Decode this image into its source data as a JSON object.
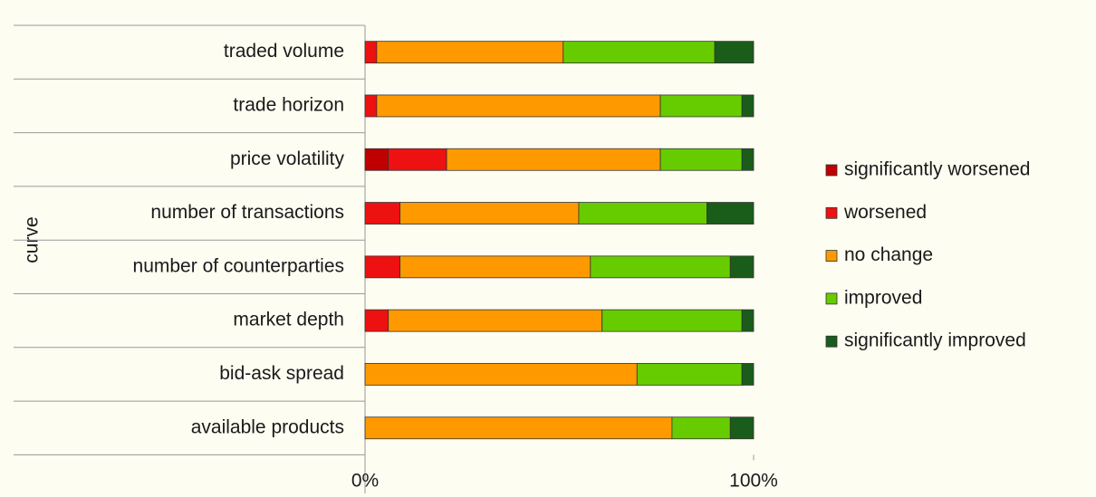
{
  "chart_data": {
    "type": "stacked-bar-horizontal",
    "ylabel": "curve",
    "categories": [
      "traded volume",
      "trade horizon",
      "price volatility",
      "number of transactions",
      "number of counterparties",
      "market depth",
      "bid-ask spread",
      "available products"
    ],
    "series": [
      {
        "name": "significantly worsened",
        "color": "#c00000",
        "values": [
          0,
          0,
          6,
          0,
          0,
          0,
          0,
          0
        ]
      },
      {
        "name": "worsened",
        "color": "#ee1111",
        "values": [
          3,
          3,
          15,
          9,
          9,
          6,
          0,
          0
        ]
      },
      {
        "name": "no change",
        "color": "#ff9900",
        "values": [
          48,
          73,
          55,
          46,
          49,
          55,
          70,
          79
        ]
      },
      {
        "name": "improved",
        "color": "#66cc00",
        "values": [
          39,
          21,
          21,
          33,
          36,
          36,
          27,
          15
        ]
      },
      {
        "name": "significantly improved",
        "color": "#1a5c1a",
        "values": [
          10,
          3,
          3,
          12,
          6,
          3,
          3,
          6
        ]
      }
    ],
    "xlim": [
      0,
      100
    ],
    "xticks": [
      {
        "value": 0,
        "label": "0%"
      },
      {
        "value": 100,
        "label": "100%"
      }
    ],
    "legend": "right"
  }
}
